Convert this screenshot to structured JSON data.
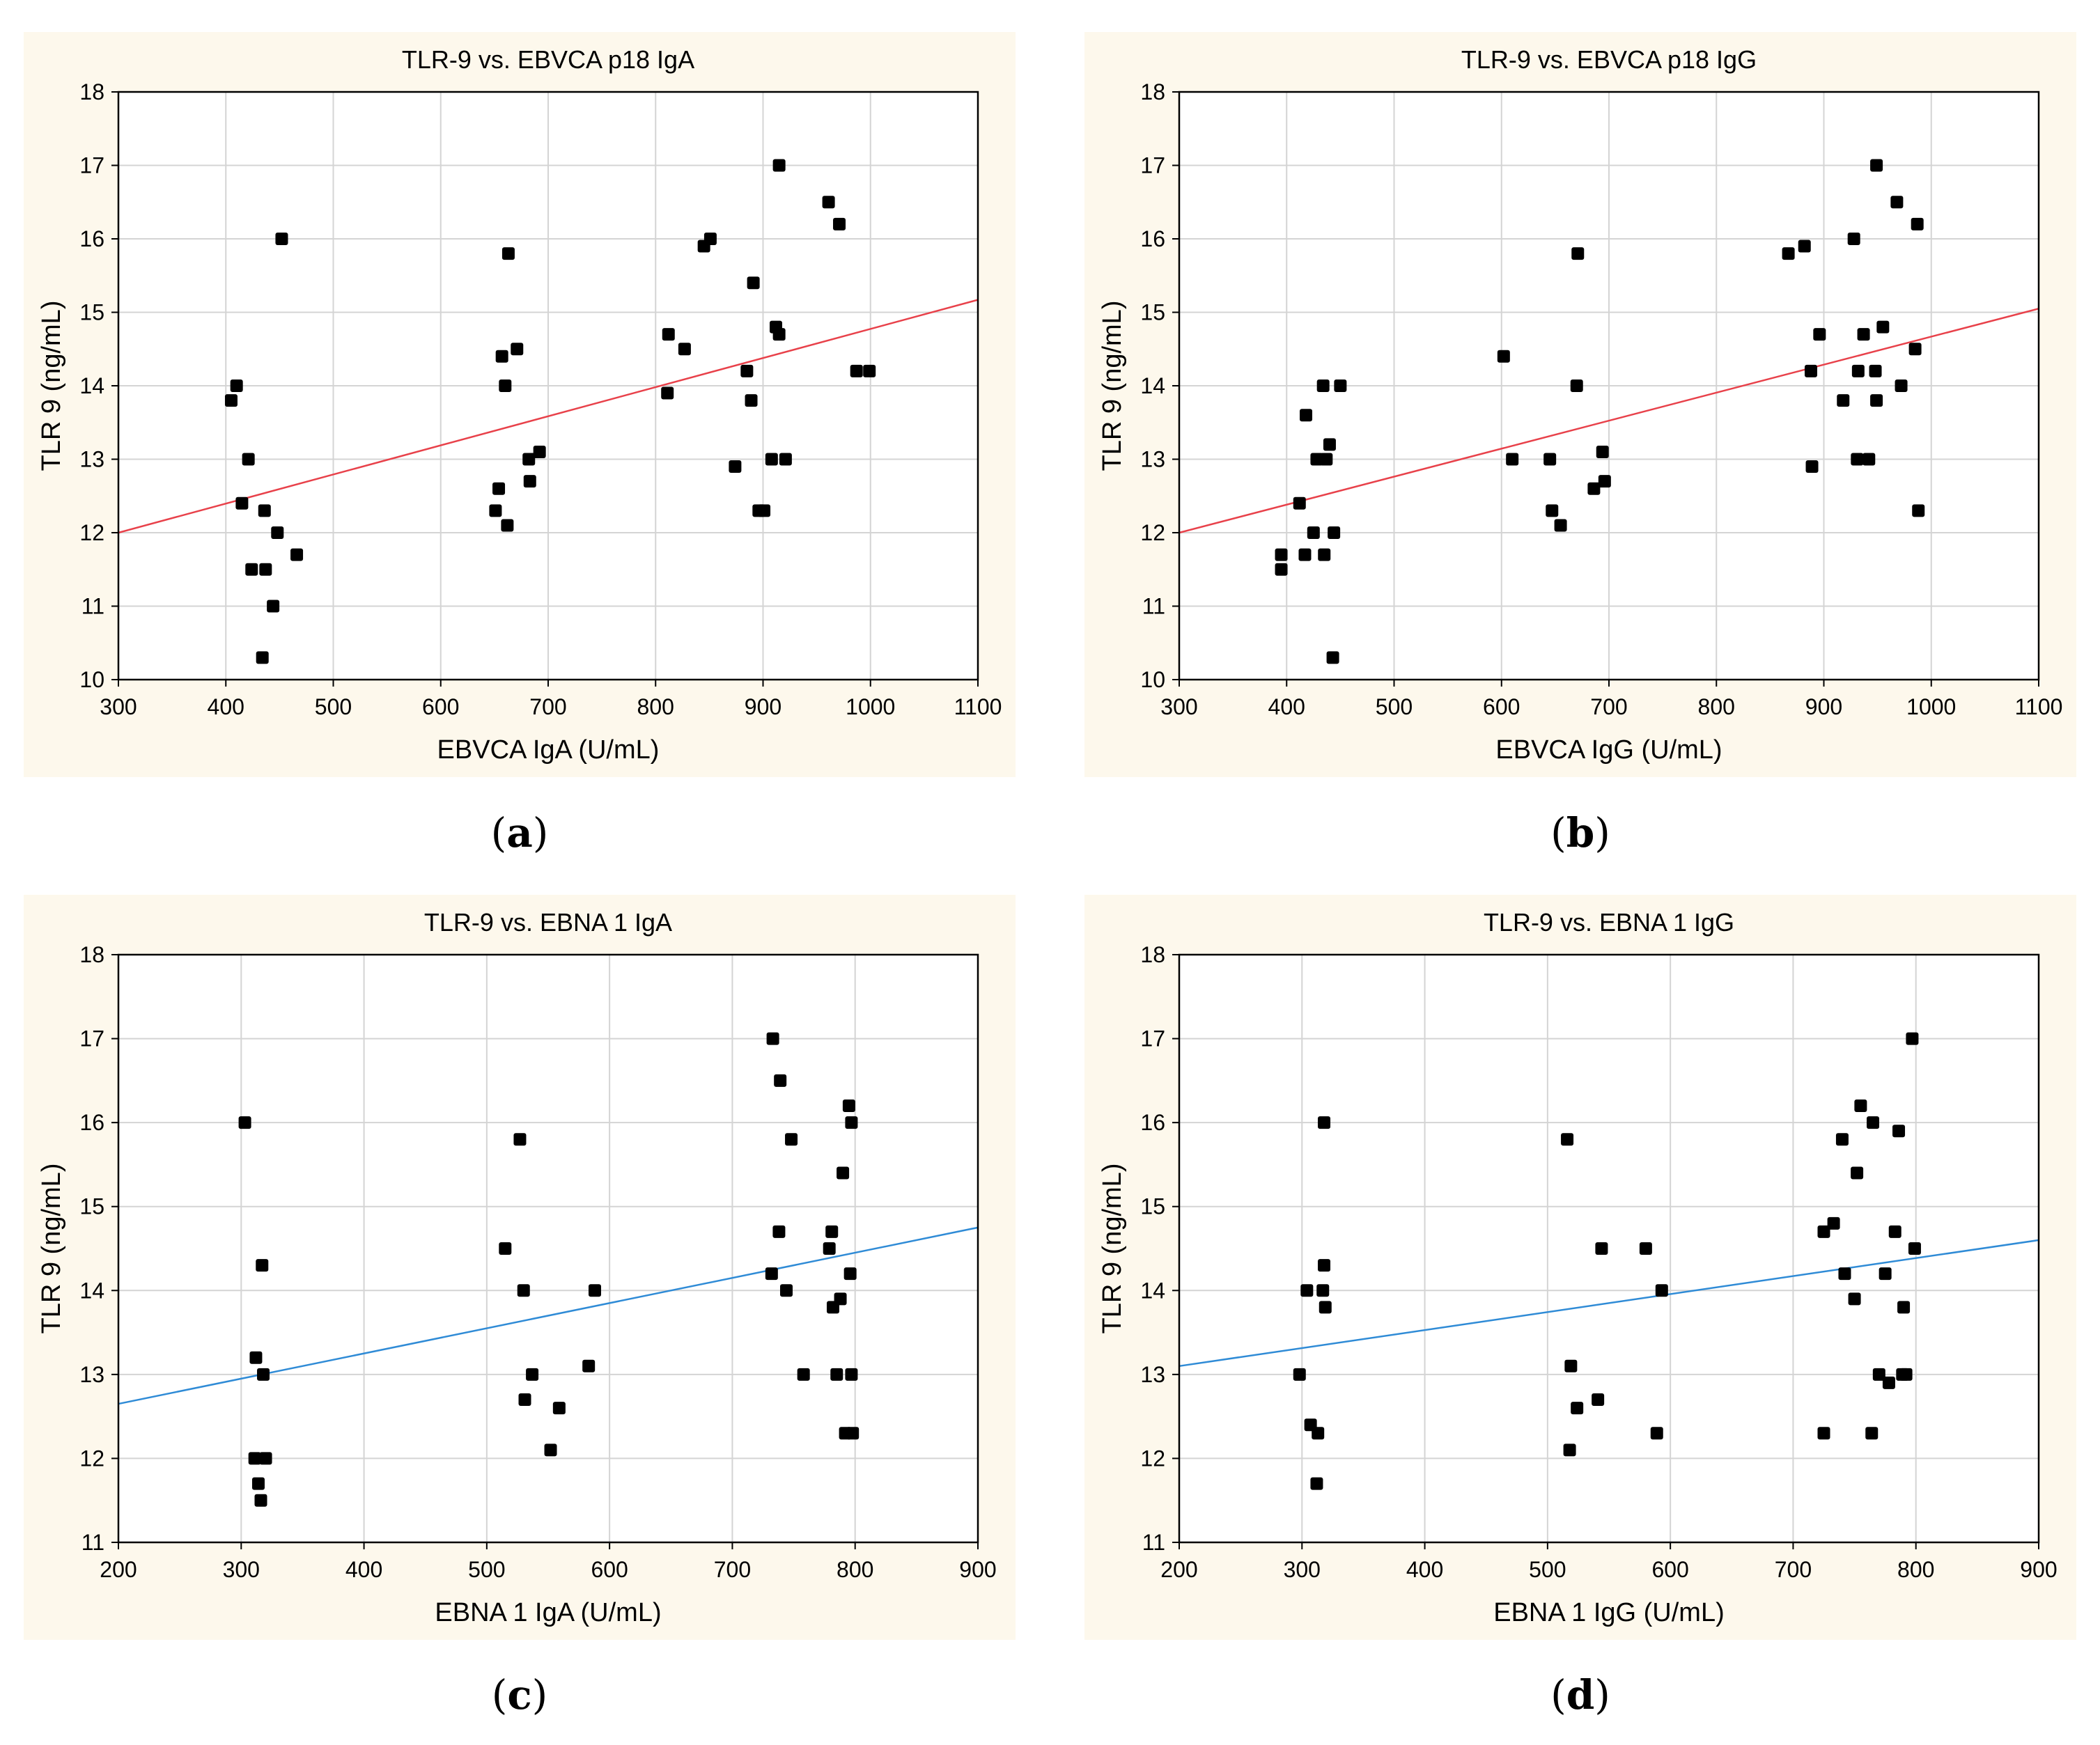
{
  "chart_data": [
    {
      "type": "scatter",
      "panel_label": "a",
      "title": "TLR-9 vs. EBVCA p18 IgA",
      "xlabel": "EBVCA IgA (U/mL)",
      "ylabel": "TLR 9 (ng/mL)",
      "xlim": [
        300,
        1100
      ],
      "ylim": [
        10,
        18
      ],
      "xticks": [
        300,
        400,
        500,
        600,
        700,
        800,
        900,
        1000,
        1100
      ],
      "yticks": [
        10,
        11,
        12,
        13,
        14,
        15,
        16,
        17,
        18
      ],
      "grid": true,
      "fit_line": {
        "x": [
          300,
          1100
        ],
        "y": [
          12.0,
          15.17
        ],
        "color": "#e8414a"
      },
      "points": [
        [
          405,
          13.8
        ],
        [
          410,
          14.0
        ],
        [
          415,
          12.4
        ],
        [
          421,
          13.0
        ],
        [
          424,
          11.5
        ],
        [
          434,
          10.3
        ],
        [
          436,
          12.3
        ],
        [
          437,
          11.5
        ],
        [
          444,
          11.0
        ],
        [
          448,
          12.0
        ],
        [
          452,
          16.0
        ],
        [
          466,
          11.7
        ],
        [
          651,
          12.3
        ],
        [
          654,
          12.6
        ],
        [
          657,
          14.4
        ],
        [
          660,
          14.0
        ],
        [
          662,
          12.1
        ],
        [
          663,
          15.8
        ],
        [
          671,
          14.5
        ],
        [
          682,
          13.0
        ],
        [
          683,
          12.7
        ],
        [
          692,
          13.1
        ],
        [
          811,
          13.9
        ],
        [
          812,
          14.7
        ],
        [
          827,
          14.5
        ],
        [
          845,
          15.9
        ],
        [
          851,
          16.0
        ],
        [
          874,
          12.9
        ],
        [
          885,
          14.2
        ],
        [
          889,
          13.8
        ],
        [
          891,
          15.4
        ],
        [
          896,
          12.3
        ],
        [
          901,
          12.3
        ],
        [
          908,
          13.0
        ],
        [
          912,
          14.8
        ],
        [
          915,
          14.7
        ],
        [
          915,
          17.0
        ],
        [
          921,
          13.0
        ],
        [
          961,
          16.5
        ],
        [
          971,
          16.2
        ],
        [
          987,
          14.2
        ],
        [
          999,
          14.2
        ]
      ]
    },
    {
      "type": "scatter",
      "panel_label": "b",
      "title": "TLR-9 vs. EBVCA p18 IgG",
      "xlabel": "EBVCA IgG (U/mL)",
      "ylabel": "TLR 9 (ng/mL)",
      "xlim": [
        300,
        1100
      ],
      "ylim": [
        10,
        18
      ],
      "xticks": [
        300,
        400,
        500,
        600,
        700,
        800,
        900,
        1000,
        1100
      ],
      "yticks": [
        10,
        11,
        12,
        13,
        14,
        15,
        16,
        17,
        18
      ],
      "grid": true,
      "fit_line": {
        "x": [
          300,
          1100
        ],
        "y": [
          12.0,
          15.05
        ],
        "color": "#e8414a"
      },
      "points": [
        [
          395,
          11.5
        ],
        [
          395,
          11.7
        ],
        [
          412,
          12.4
        ],
        [
          417,
          11.7
        ],
        [
          418,
          13.6
        ],
        [
          425,
          12.0
        ],
        [
          428,
          13.0
        ],
        [
          434,
          14.0
        ],
        [
          435,
          11.7
        ],
        [
          437,
          13.0
        ],
        [
          440,
          13.2
        ],
        [
          443,
          10.3
        ],
        [
          444,
          12.0
        ],
        [
          450,
          14.0
        ],
        [
          602,
          14.4
        ],
        [
          610,
          13.0
        ],
        [
          645,
          13.0
        ],
        [
          647,
          12.3
        ],
        [
          655,
          12.1
        ],
        [
          670,
          14.0
        ],
        [
          671,
          15.8
        ],
        [
          686,
          12.6
        ],
        [
          694,
          13.1
        ],
        [
          696,
          12.7
        ],
        [
          867,
          15.8
        ],
        [
          882,
          15.9
        ],
        [
          888,
          14.2
        ],
        [
          889,
          12.9
        ],
        [
          896,
          14.7
        ],
        [
          918,
          13.8
        ],
        [
          928,
          16.0
        ],
        [
          931,
          13.0
        ],
        [
          932,
          14.2
        ],
        [
          937,
          14.7
        ],
        [
          942,
          13.0
        ],
        [
          948,
          14.2
        ],
        [
          949,
          13.8
        ],
        [
          949,
          17.0
        ],
        [
          955,
          14.8
        ],
        [
          968,
          16.5
        ],
        [
          972,
          14.0
        ],
        [
          985,
          14.5
        ],
        [
          987,
          16.2
        ],
        [
          988,
          12.3
        ]
      ]
    },
    {
      "type": "scatter",
      "panel_label": "c",
      "title": "TLR-9 vs. EBNA 1 IgA",
      "xlabel": "EBNA 1 IgA (U/mL)",
      "ylabel": "TLR 9 (ng/mL)",
      "xlim": [
        200,
        900
      ],
      "ylim": [
        11,
        18
      ],
      "xticks": [
        200,
        300,
        400,
        500,
        600,
        700,
        800,
        900
      ],
      "yticks": [
        11,
        12,
        13,
        14,
        15,
        16,
        17,
        18
      ],
      "grid": true,
      "fit_line": {
        "x": [
          200,
          900
        ],
        "y": [
          12.65,
          14.75
        ],
        "color": "#2f8bd6"
      },
      "points": [
        [
          303,
          16.0
        ],
        [
          311,
          12.0
        ],
        [
          312,
          13.2
        ],
        [
          314,
          11.7
        ],
        [
          316,
          11.5
        ],
        [
          317,
          14.3
        ],
        [
          318,
          13.0
        ],
        [
          320,
          12.0
        ],
        [
          515,
          14.5
        ],
        [
          527,
          15.8
        ],
        [
          530,
          14.0
        ],
        [
          531,
          12.7
        ],
        [
          537,
          13.0
        ],
        [
          552,
          12.1
        ],
        [
          559,
          12.6
        ],
        [
          583,
          13.1
        ],
        [
          588,
          14.0
        ],
        [
          732,
          14.2
        ],
        [
          733,
          17.0
        ],
        [
          738,
          14.7
        ],
        [
          739,
          16.5
        ],
        [
          744,
          14.0
        ],
        [
          748,
          15.8
        ],
        [
          758,
          13.0
        ],
        [
          779,
          14.5
        ],
        [
          781,
          14.7
        ],
        [
          782,
          13.8
        ],
        [
          785,
          13.0
        ],
        [
          788,
          13.9
        ],
        [
          790,
          15.4
        ],
        [
          792,
          12.3
        ],
        [
          795,
          16.2
        ],
        [
          796,
          14.2
        ],
        [
          797,
          16.0
        ],
        [
          797,
          13.0
        ],
        [
          798,
          12.3
        ]
      ]
    },
    {
      "type": "scatter",
      "panel_label": "d",
      "title": "TLR-9 vs. EBNA 1 IgG",
      "xlabel": "EBNA 1 IgG (U/mL)",
      "ylabel": "TLR 9 (ng/mL)",
      "xlim": [
        200,
        900
      ],
      "ylim": [
        11,
        18
      ],
      "xticks": [
        200,
        300,
        400,
        500,
        600,
        700,
        800,
        900
      ],
      "yticks": [
        11,
        12,
        13,
        14,
        15,
        16,
        17,
        18
      ],
      "grid": true,
      "fit_line": {
        "x": [
          200,
          900
        ],
        "y": [
          13.1,
          14.6
        ],
        "color": "#2f8bd6"
      },
      "points": [
        [
          298,
          13.0
        ],
        [
          304,
          14.0
        ],
        [
          307,
          12.4
        ],
        [
          312,
          11.7
        ],
        [
          313,
          12.3
        ],
        [
          317,
          14.0
        ],
        [
          318,
          14.3
        ],
        [
          318,
          16.0
        ],
        [
          319,
          13.8
        ],
        [
          516,
          15.8
        ],
        [
          518,
          12.1
        ],
        [
          519,
          13.1
        ],
        [
          524,
          12.6
        ],
        [
          541,
          12.7
        ],
        [
          544,
          14.5
        ],
        [
          580,
          14.5
        ],
        [
          589,
          12.3
        ],
        [
          593,
          14.0
        ],
        [
          725,
          12.3
        ],
        [
          725,
          14.7
        ],
        [
          733,
          14.8
        ],
        [
          740,
          15.8
        ],
        [
          742,
          14.2
        ],
        [
          750,
          13.9
        ],
        [
          752,
          15.4
        ],
        [
          755,
          16.2
        ],
        [
          764,
          12.3
        ],
        [
          765,
          16.0
        ],
        [
          770,
          13.0
        ],
        [
          775,
          14.2
        ],
        [
          778,
          12.9
        ],
        [
          783,
          14.7
        ],
        [
          786,
          15.9
        ],
        [
          789,
          13.0
        ],
        [
          790,
          13.8
        ],
        [
          792,
          13.0
        ],
        [
          797,
          17.0
        ],
        [
          799,
          14.5
        ]
      ]
    }
  ]
}
